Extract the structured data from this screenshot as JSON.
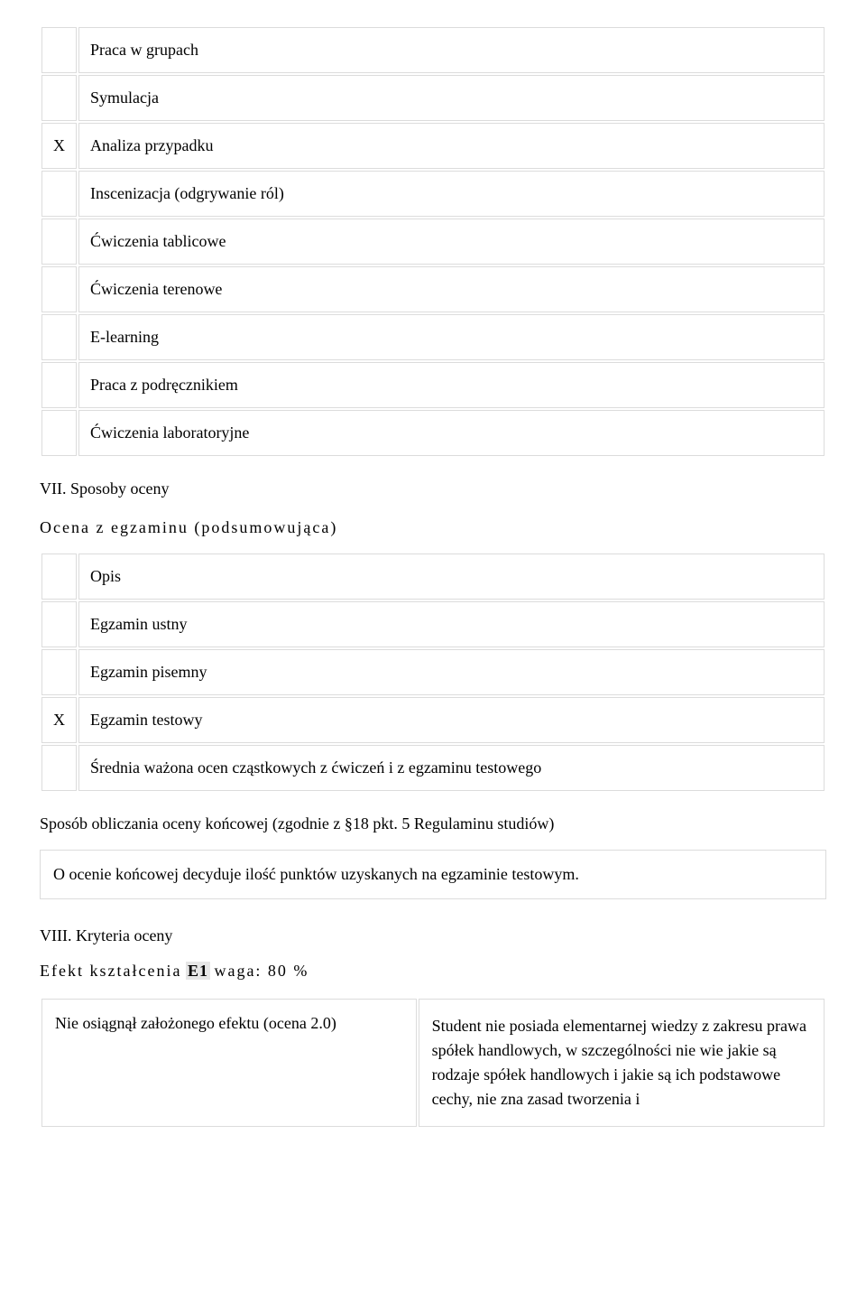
{
  "methods": {
    "rows": [
      {
        "mark": "",
        "label": "Praca w grupach"
      },
      {
        "mark": "",
        "label": "Symulacja"
      },
      {
        "mark": "X",
        "label": "Analiza przypadku"
      },
      {
        "mark": "",
        "label": "Inscenizacja (odgrywanie ról)"
      },
      {
        "mark": "",
        "label": "Ćwiczenia tablicowe"
      },
      {
        "mark": "",
        "label": "Ćwiczenia terenowe"
      },
      {
        "mark": "",
        "label": "E-learning"
      },
      {
        "mark": "",
        "label": "Praca z podręcznikiem"
      },
      {
        "mark": "",
        "label": "Ćwiczenia laboratoryjne"
      }
    ]
  },
  "section_vii": "VII. Sposoby oceny",
  "exam_heading": "Ocena z egzaminu (podsumowująca)",
  "exam": {
    "rows": [
      {
        "mark": "",
        "label": "Opis"
      },
      {
        "mark": "",
        "label": "Egzamin ustny"
      },
      {
        "mark": "",
        "label": "Egzamin pisemny"
      },
      {
        "mark": "X",
        "label": "Egzamin testowy"
      },
      {
        "mark": "",
        "label": "Średnia ważona ocen cząstkowych z ćwiczeń i z egzaminu testowego"
      }
    ]
  },
  "final_grade_heading": "Sposób obliczania oceny końcowej (zgodnie z §18 pkt. 5 Regulaminu studiów)",
  "final_grade_box": "O ocenie końcowej decyduje ilość punktów uzyskanych na egzaminie testowym.",
  "section_viii": "VIII. Kryteria oceny",
  "effect": {
    "prefix": "Efekt kształcenia",
    "code": "E1",
    "weight": "waga: 80 %"
  },
  "criteria": {
    "left": "Nie osiągnął założonego efektu (ocena 2.0)",
    "right": "Student nie posiada elementarnej wiedzy z zakresu prawa spółek handlowych, w szczególności nie wie jakie są rodzaje spółek handlowych i jakie są ich podstawowe cechy, nie zna zasad tworzenia i"
  }
}
